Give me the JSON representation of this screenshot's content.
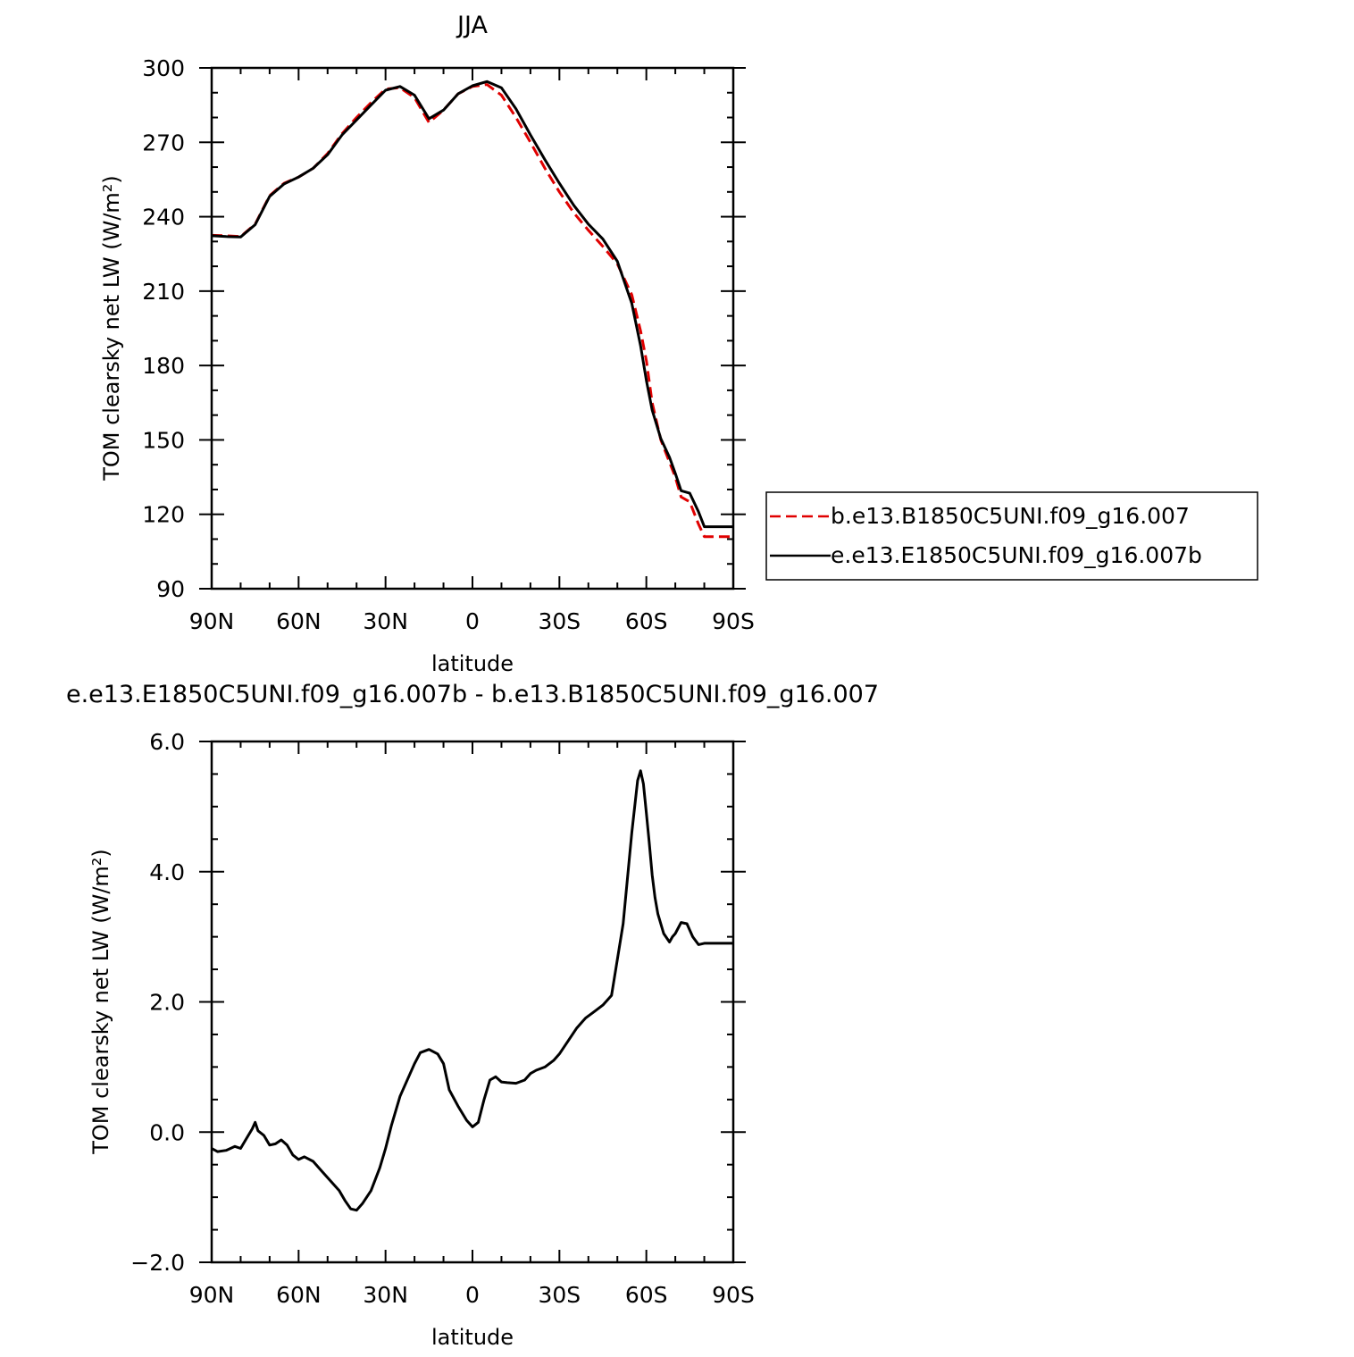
{
  "chart_data": [
    {
      "type": "line",
      "title": "JJA",
      "xlabel": "latitude",
      "ylabel": "TOM clearsky net LW (W/m²)",
      "xlim": [
        90,
        -90
      ],
      "ylim": [
        90,
        300
      ],
      "xticks": [
        90,
        60,
        30,
        0,
        -30,
        -60,
        -90
      ],
      "xtick_labels": [
        "90N",
        "60N",
        "30N",
        "0",
        "30S",
        "60S",
        "90S"
      ],
      "yticks": [
        90,
        120,
        150,
        180,
        210,
        240,
        270,
        300
      ],
      "ytick_labels": [
        "90",
        "120",
        "150",
        "180",
        "210",
        "240",
        "270",
        "300"
      ],
      "legend_position": "right",
      "series": [
        {
          "name": "b.e13.B1850C5UNI.f09_g16.007",
          "color": "#e00000",
          "dash": "dashed",
          "x": [
            90,
            85,
            80,
            75,
            70,
            65,
            60,
            55,
            50,
            45,
            40,
            35,
            30,
            25,
            20,
            15,
            10,
            5,
            0,
            -5,
            -10,
            -15,
            -20,
            -25,
            -30,
            -35,
            -40,
            -45,
            -50,
            -55,
            -58,
            -60,
            -62,
            -65,
            -68,
            -70,
            -72,
            -75,
            -78,
            -80,
            -82,
            -85,
            -88,
            -90
          ],
          "y": [
            232.5,
            232.3,
            232.0,
            237.0,
            248.5,
            253.5,
            256.0,
            259.5,
            265.5,
            273.5,
            280.0,
            286.0,
            291.5,
            292.0,
            288.0,
            278.0,
            283.0,
            289.5,
            292.5,
            293.3,
            289.0,
            280.0,
            270.0,
            259.5,
            250.0,
            241.5,
            234.5,
            228.0,
            221.0,
            208.5,
            194.0,
            182.0,
            165.0,
            150.0,
            141.0,
            135.0,
            127.0,
            125.0,
            116.0,
            111.0,
            111.0,
            111.0,
            111.0,
            111.0
          ]
        },
        {
          "name": "e.e13.E1850C5UNI.f09_g16.007b",
          "color": "#000000",
          "dash": "solid",
          "x": [
            90,
            85,
            80,
            75,
            70,
            65,
            60,
            55,
            50,
            45,
            40,
            35,
            30,
            25,
            20,
            15,
            10,
            5,
            0,
            -5,
            -10,
            -15,
            -20,
            -25,
            -30,
            -35,
            -40,
            -45,
            -50,
            -55,
            -58,
            -60,
            -62,
            -65,
            -68,
            -70,
            -72,
            -75,
            -78,
            -80,
            -82,
            -85,
            -88,
            -90
          ],
          "y": [
            232.3,
            232.0,
            231.8,
            236.8,
            248.2,
            253.2,
            256.0,
            259.5,
            265.0,
            273.0,
            279.0,
            285.0,
            291.0,
            292.5,
            289.0,
            279.5,
            283.0,
            289.5,
            292.8,
            294.5,
            292.0,
            283.5,
            273.0,
            263.0,
            253.5,
            244.5,
            237.0,
            231.0,
            222.0,
            205.0,
            188.0,
            174.0,
            162.0,
            150.5,
            143.0,
            136.5,
            129.5,
            128.5,
            121.0,
            115.0,
            115.0,
            115.0,
            115.0,
            115.0
          ]
        }
      ]
    },
    {
      "type": "line",
      "title": "e.e13.E1850C5UNI.f09_g16.007b - b.e13.B1850C5UNI.f09_g16.007",
      "xlabel": "latitude",
      "ylabel": "TOM clearsky net LW (W/m²)",
      "xlim": [
        90,
        -90
      ],
      "ylim": [
        -2.0,
        6.0
      ],
      "xticks": [
        90,
        60,
        30,
        0,
        -30,
        -60,
        -90
      ],
      "xtick_labels": [
        "90N",
        "60N",
        "30N",
        "0",
        "30S",
        "60S",
        "90S"
      ],
      "yticks": [
        -2.0,
        0.0,
        2.0,
        4.0,
        6.0
      ],
      "ytick_labels": [
        "−2.0",
        "0.0",
        "2.0",
        "4.0",
        "6.0"
      ],
      "series": [
        {
          "color": "#000000",
          "dash": "solid",
          "x": [
            90,
            88,
            85,
            82,
            80,
            78,
            76,
            75,
            74,
            72,
            70,
            68,
            66,
            64,
            62,
            60,
            58,
            55,
            52,
            50,
            48,
            46,
            44,
            42,
            40,
            38,
            35,
            32,
            30,
            28,
            25,
            22,
            20,
            18,
            15,
            12,
            10,
            8,
            5,
            2,
            0,
            -2,
            -4,
            -6,
            -8,
            -10,
            -12,
            -15,
            -18,
            -20,
            -22,
            -25,
            -28,
            -30,
            -33,
            -36,
            -39,
            -42,
            -45,
            -48,
            -52,
            -55,
            -57,
            -58,
            -59,
            -60,
            -61,
            -62,
            -63,
            -64,
            -66,
            -68,
            -69,
            -70,
            -72,
            -74,
            -76,
            -78,
            -80,
            -82,
            -84,
            -86,
            -88,
            -90
          ],
          "y": [
            -0.25,
            -0.3,
            -0.28,
            -0.22,
            -0.25,
            -0.1,
            0.05,
            0.15,
            0.02,
            -0.05,
            -0.2,
            -0.18,
            -0.12,
            -0.2,
            -0.35,
            -0.42,
            -0.38,
            -0.45,
            -0.6,
            -0.7,
            -0.8,
            -0.9,
            -1.05,
            -1.18,
            -1.2,
            -1.1,
            -0.9,
            -0.55,
            -0.25,
            0.1,
            0.55,
            0.85,
            1.05,
            1.22,
            1.27,
            1.2,
            1.05,
            0.65,
            0.4,
            0.18,
            0.08,
            0.15,
            0.5,
            0.8,
            0.85,
            0.77,
            0.76,
            0.75,
            0.8,
            0.9,
            0.95,
            1.0,
            1.1,
            1.2,
            1.4,
            1.6,
            1.75,
            1.85,
            1.95,
            2.1,
            3.2,
            4.6,
            5.4,
            5.55,
            5.35,
            4.9,
            4.45,
            3.95,
            3.6,
            3.35,
            3.05,
            2.92,
            3.0,
            3.05,
            3.22,
            3.2,
            3.0,
            2.88,
            2.9,
            2.9,
            2.9,
            2.9,
            2.9,
            2.9
          ]
        }
      ]
    }
  ]
}
